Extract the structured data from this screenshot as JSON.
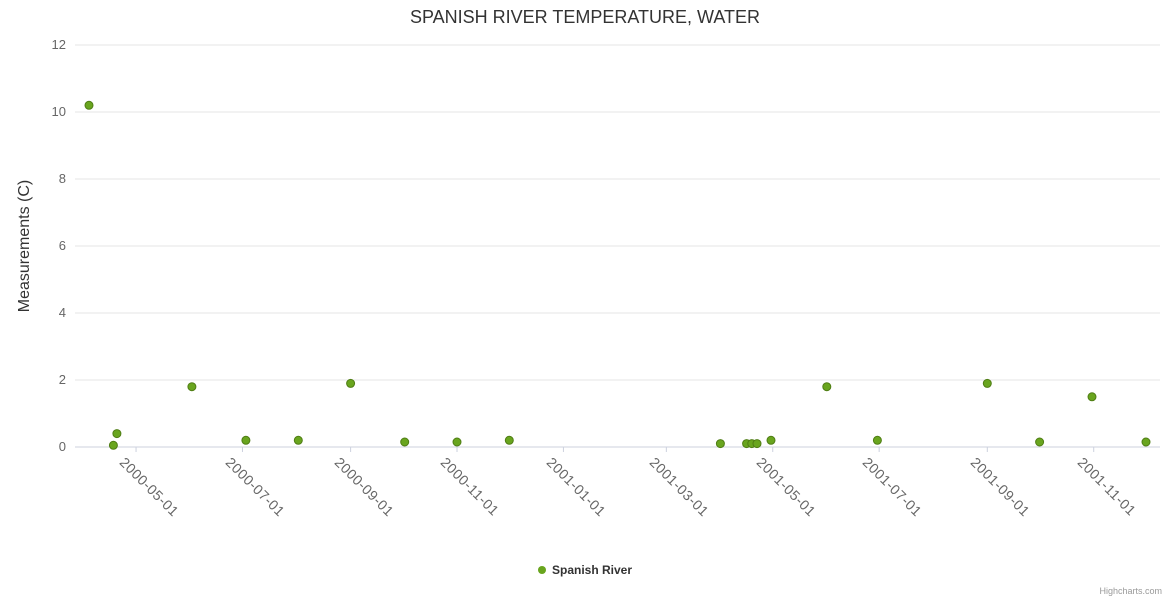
{
  "chart_data": {
    "type": "scatter",
    "title": "SPANISH RIVER TEMPERATURE, WATER",
    "xlabel": "",
    "ylabel": "Measurements (C)",
    "series_name": "Spanish River",
    "ylim": [
      0,
      12
    ],
    "ytick_interval": 2,
    "xlim": [
      "2000-03-27",
      "2001-12-09"
    ],
    "xticks": [
      "2000-05-01",
      "2000-07-01",
      "2000-09-01",
      "2000-11-01",
      "2001-01-01",
      "2001-03-01",
      "2001-05-01",
      "2001-07-01",
      "2001-09-01",
      "2001-11-01"
    ],
    "points": [
      {
        "date": "2000-04-04",
        "value": 10.2
      },
      {
        "date": "2000-04-18",
        "value": 0.05
      },
      {
        "date": "2000-04-20",
        "value": 0.4
      },
      {
        "date": "2000-06-02",
        "value": 1.8
      },
      {
        "date": "2000-07-03",
        "value": 0.2
      },
      {
        "date": "2000-08-02",
        "value": 0.2
      },
      {
        "date": "2000-09-01",
        "value": 1.9
      },
      {
        "date": "2000-10-02",
        "value": 0.15
      },
      {
        "date": "2000-11-01",
        "value": 0.15
      },
      {
        "date": "2000-12-01",
        "value": 0.2
      },
      {
        "date": "2001-04-01",
        "value": 0.1
      },
      {
        "date": "2001-04-16",
        "value": 0.1
      },
      {
        "date": "2001-04-19",
        "value": 0.1
      },
      {
        "date": "2001-04-22",
        "value": 0.1
      },
      {
        "date": "2001-04-30",
        "value": 0.2
      },
      {
        "date": "2001-06-01",
        "value": 1.8
      },
      {
        "date": "2001-06-30",
        "value": 0.2
      },
      {
        "date": "2001-09-01",
        "value": 1.9
      },
      {
        "date": "2001-10-01",
        "value": 0.15
      },
      {
        "date": "2001-10-31",
        "value": 1.5
      },
      {
        "date": "2001-12-01",
        "value": 0.15
      }
    ],
    "point_color": "#69A51E",
    "point_stroke": "#4F7D14",
    "grid_color": "#E6E6E6",
    "axis_line_color": "#CCD1DE",
    "label_color": "#666666",
    "grid": true,
    "legend_position": "bottom-center"
  },
  "credits": "Highcharts.com"
}
